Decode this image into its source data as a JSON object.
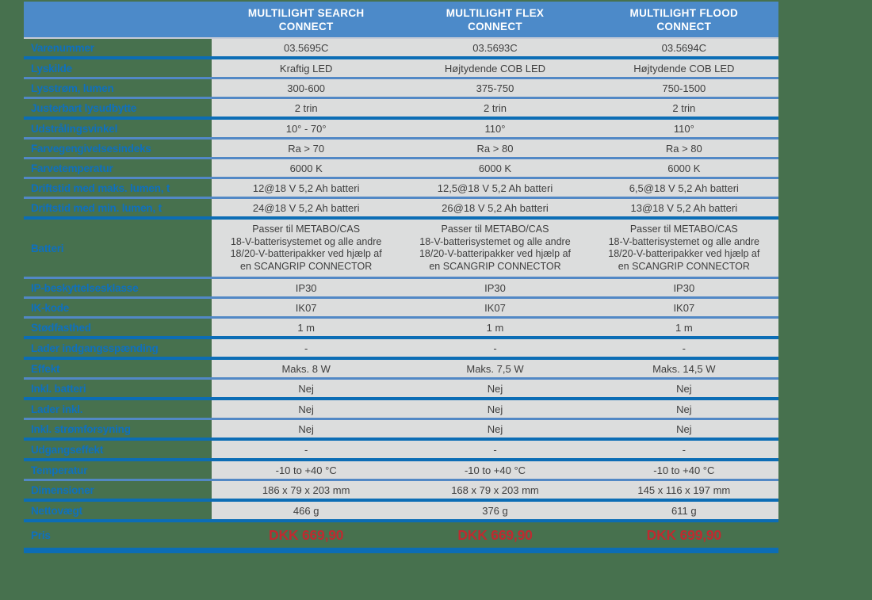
{
  "page": {
    "background_color": "#47714E"
  },
  "table": {
    "header": {
      "products": [
        "MULTILIGHT SEARCH\nCONNECT",
        "MULTILIGHT FLEX\nCONNECT",
        "MULTILIGHT FLOOD\nCONNECT"
      ],
      "background_color": "#4C8AC9",
      "text_color": "#FFFFFF"
    },
    "rows": [
      {
        "label": "Varenummer",
        "values": [
          "03.5695C",
          "03.5693C",
          "03.5694C"
        ]
      },
      {
        "label": "Lyskilde",
        "values": [
          "Kraftig LED",
          "Højtydende COB LED",
          "Højtydende COB LED"
        ]
      },
      {
        "label": "Lysstrøm, lumen",
        "values": [
          "300-600",
          "375-750",
          "750-1500"
        ]
      },
      {
        "label": "Justerbart lysudbytte",
        "values": [
          "2 trin",
          "2 trin",
          "2 trin"
        ]
      },
      {
        "label": "Udstrålingsvinkel",
        "values": [
          "10° - 70°",
          "110°",
          "110°"
        ]
      },
      {
        "label": "Farvegengivelsesindeks",
        "values": [
          "Ra > 70",
          "Ra > 80",
          "Ra > 80"
        ]
      },
      {
        "label": "Farvetemperatur",
        "values": [
          "6000 K",
          "6000 K",
          "6000 K"
        ]
      },
      {
        "label": "Driftstid med maks. lumen, t",
        "values": [
          "12@18 V 5,2 Ah batteri",
          "12,5@18 V 5,2 Ah batteri",
          "6,5@18 V 5,2 Ah batteri"
        ]
      },
      {
        "label": "Driftstid med min. lumen, t",
        "values": [
          "24@18 V 5,2 Ah batteri",
          "26@18 V 5,2 Ah batteri",
          "13@18 V 5,2 Ah batteri"
        ]
      },
      {
        "label": "Batteri",
        "values": [
          "Passer til METABO/CAS\n18-V-batterisystemet og alle andre\n18/20-V-batteripakker ved hjælp af\nen SCANGRIP CONNECTOR",
          "Passer til METABO/CAS\n18-V-batterisystemet og alle andre\n18/20-V-batteripakker ved hjælp af\nen SCANGRIP CONNECTOR",
          "Passer til METABO/CAS\n18-V-batterisystemet og alle andre\n18/20-V-batteripakker ved hjælp af\nen SCANGRIP CONNECTOR"
        ]
      },
      {
        "label": "IP-beskyttelsesklasse",
        "values": [
          "IP30",
          "IP30",
          "IP30"
        ]
      },
      {
        "label": "IK-kode",
        "values": [
          "IK07",
          "IK07",
          "IK07"
        ]
      },
      {
        "label": "Stødfasthed",
        "values": [
          "1 m",
          "1 m",
          "1 m"
        ]
      },
      {
        "label": "Lader indgangsspænding",
        "values": [
          "-",
          "-",
          "-"
        ]
      },
      {
        "label": "Effekt",
        "values": [
          "Maks. 8 W",
          "Maks. 7,5 W",
          "Maks. 14,5 W"
        ]
      },
      {
        "label": "Inkl. batteri",
        "values": [
          "Nej",
          "Nej",
          "Nej"
        ]
      },
      {
        "label": "Lader inkl.",
        "values": [
          "Nej",
          "Nej",
          "Nej"
        ]
      },
      {
        "label": "Inkl. strømforsyning",
        "values": [
          "Nej",
          "Nej",
          "Nej"
        ]
      },
      {
        "label": "Udgangseffekt",
        "values": [
          "-",
          "-",
          "-"
        ]
      },
      {
        "label": "Temperatur",
        "values": [
          "-10 to +40 °C",
          "-10 to +40 °C",
          "-10 to +40 °C"
        ]
      },
      {
        "label": "Dimensioner",
        "values": [
          "186 x 79 x 203 mm",
          "168 x 79 x 203 mm",
          "145 x 116 x 197 mm"
        ]
      },
      {
        "label": "Nettovægt",
        "values": [
          "466 g",
          "376 g",
          "611 g"
        ]
      },
      {
        "label": "Pris",
        "values": [
          "DKK 669,90",
          "DKK 669,90",
          "DKK 699,90"
        ]
      }
    ],
    "colors": {
      "label_text": "#0F70BE",
      "cell_background": "#DCDDDD",
      "cell_text": "#3E3E3E",
      "separator": "#5288C5",
      "separator_strong": "#0C6DB5",
      "price_text": "#BE2B30"
    }
  }
}
